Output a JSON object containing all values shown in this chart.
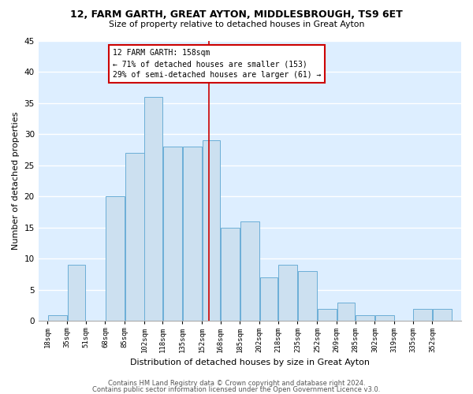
{
  "title1": "12, FARM GARTH, GREAT AYTON, MIDDLESBROUGH, TS9 6ET",
  "title2": "Size of property relative to detached houses in Great Ayton",
  "xlabel": "Distribution of detached houses by size in Great Ayton",
  "ylabel": "Number of detached properties",
  "bin_labels": [
    "18sqm",
    "35sqm",
    "51sqm",
    "68sqm",
    "85sqm",
    "102sqm",
    "118sqm",
    "135sqm",
    "152sqm",
    "168sqm",
    "185sqm",
    "202sqm",
    "218sqm",
    "235sqm",
    "252sqm",
    "269sqm",
    "285sqm",
    "302sqm",
    "319sqm",
    "335sqm",
    "352sqm"
  ],
  "bar_values": [
    1,
    9,
    0,
    20,
    27,
    36,
    28,
    28,
    29,
    15,
    16,
    7,
    9,
    8,
    2,
    3,
    1,
    1,
    0,
    2,
    2
  ],
  "bin_edges": [
    18,
    35,
    51,
    68,
    85,
    102,
    118,
    135,
    152,
    168,
    185,
    202,
    218,
    235,
    252,
    269,
    285,
    302,
    319,
    335,
    352,
    369
  ],
  "bar_color": "#cce0f0",
  "bar_edge_color": "#6baed6",
  "property_size": 158,
  "red_line_color": "#cc0000",
  "annotation_line1": "12 FARM GARTH: 158sqm",
  "annotation_line2": "← 71% of detached houses are smaller (153)",
  "annotation_line3": "29% of semi-detached houses are larger (61) →",
  "annotation_box_color": "#ffffff",
  "annotation_box_edge_color": "#cc0000",
  "ylim": [
    0,
    45
  ],
  "yticks": [
    0,
    5,
    10,
    15,
    20,
    25,
    30,
    35,
    40,
    45
  ],
  "background_color": "#ddeeff",
  "grid_color": "#ffffff",
  "footer1": "Contains HM Land Registry data © Crown copyright and database right 2024.",
  "footer2": "Contains public sector information licensed under the Open Government Licence v3.0."
}
